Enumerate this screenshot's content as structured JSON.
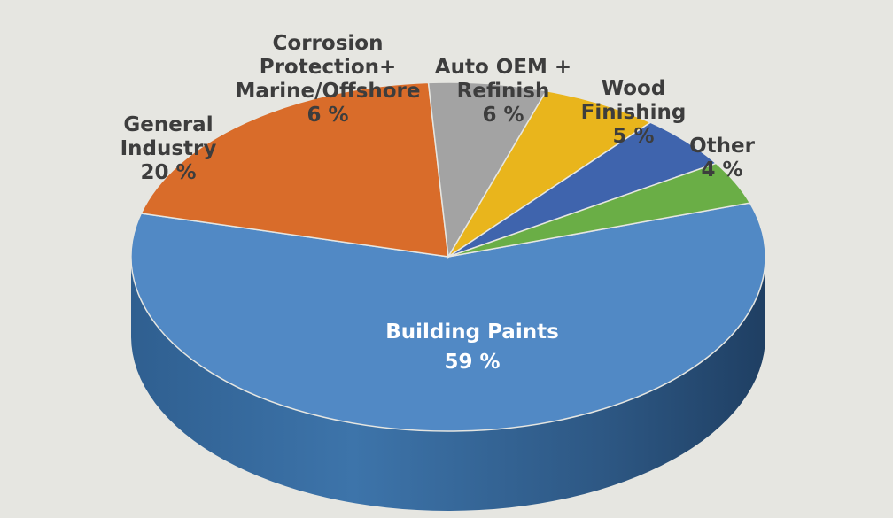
{
  "chart_data": {
    "type": "pie",
    "title": "",
    "slices": [
      {
        "label": "Building Paints",
        "value": 59,
        "display": "59 %",
        "color": "#5189c5"
      },
      {
        "label": "General Industry",
        "value": 20,
        "display": "20 %",
        "color": "#d96c2a"
      },
      {
        "label": "Corrosion Protection+ Marine/Offshore",
        "value": 6,
        "display": "6 %",
        "color": "#a3a3a3"
      },
      {
        "label": "Auto OEM + Refinish",
        "value": 6,
        "display": "6 %",
        "color": "#e9b51c"
      },
      {
        "label": "Wood Finishing",
        "value": 5,
        "display": "5 %",
        "color": "#3f64ad"
      },
      {
        "label": "Other",
        "value": 4,
        "display": "4 %",
        "color": "#6aae46"
      }
    ],
    "legend": "none"
  },
  "labels": {
    "building": {
      "lines": [
        "Building Paints"
      ],
      "pct": "59 %"
    },
    "general": {
      "lines": [
        "General",
        "Industry"
      ],
      "pct": "20 %"
    },
    "corrosion": {
      "lines": [
        "Corrosion",
        "Protection+",
        "Marine/Offshore"
      ],
      "pct": "6 %"
    },
    "auto": {
      "lines": [
        "Auto OEM +",
        "Refinish"
      ],
      "pct": "6 %"
    },
    "wood": {
      "lines": [
        "Wood",
        "Finishing"
      ],
      "pct": "5 %"
    },
    "other": {
      "lines": [
        "Other"
      ],
      "pct": "4 %"
    }
  }
}
